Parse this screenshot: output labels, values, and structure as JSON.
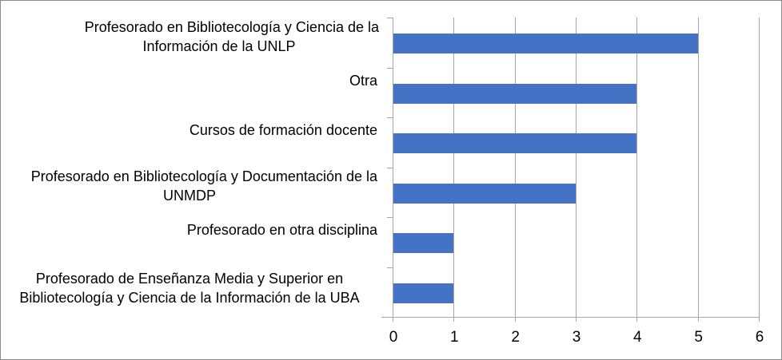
{
  "chart_data": {
    "type": "bar",
    "orientation": "horizontal",
    "title": "",
    "xlabel": "",
    "ylabel": "",
    "categories": [
      "Profesorado en Bibliotecología y Ciencia de la Información de la UNLP",
      "Otra",
      "Cursos de formación docente",
      "Profesorado en Bibliotecología y Documentación de la UNMDP",
      "Profesorado en otra disciplina",
      "Profesorado de Enseñanza Media y Superior en Bibliotecología y Ciencia de la Información de la UBA"
    ],
    "category_label_lines": [
      [
        "Profesorado en Bibliotecología y Ciencia de la",
        "Información de la UNLP"
      ],
      [
        "Otra"
      ],
      [
        "Cursos de formación docente"
      ],
      [
        "Profesorado en Bibliotecología y Documentación de la",
        "UNMDP"
      ],
      [
        "Profesorado en otra disciplina"
      ],
      [
        "Profesorado de Enseñanza Media y Superior en",
        "Bibliotecología y Ciencia de la Información de la UBA"
      ]
    ],
    "values": [
      5,
      4,
      4,
      3,
      1,
      1
    ],
    "xlim": [
      0,
      6
    ],
    "xticks": [
      "0",
      "1",
      "2",
      "3",
      "4",
      "5",
      "6"
    ],
    "grid": true,
    "legend": null,
    "bar_color": "#4472c4"
  }
}
